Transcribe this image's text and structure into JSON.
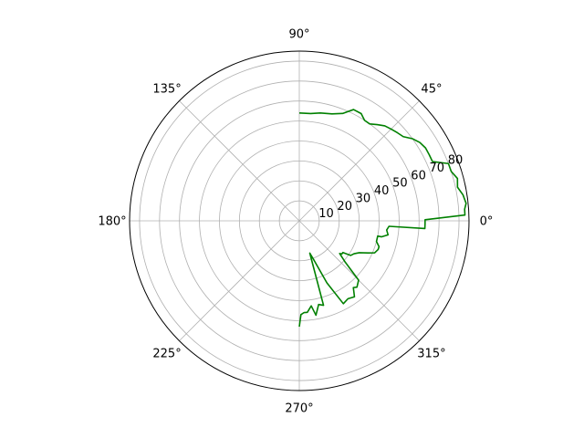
{
  "chart_data": {
    "type": "line",
    "projection": "polar",
    "title": "",
    "theta_unit": "degrees",
    "theta_tick_labels": [
      "0°",
      "45°",
      "90°",
      "135°",
      "180°",
      "225°",
      "270°",
      "315°"
    ],
    "theta_ticks": [
      0,
      45,
      90,
      135,
      180,
      225,
      270,
      315
    ],
    "r_ticks": [
      10,
      20,
      30,
      40,
      50,
      60,
      70,
      80
    ],
    "r_tick_labels": [
      "10",
      "20",
      "30",
      "40",
      "50",
      "60",
      "70",
      "80"
    ],
    "rlim": [
      0,
      85
    ],
    "grid": true,
    "series": [
      {
        "color": "#008000",
        "theta": [
          90,
          84,
          79,
          73,
          68,
          64,
          60,
          57,
          54,
          51,
          48,
          45,
          42,
          39,
          36,
          33,
          30,
          27,
          24,
          21,
          18,
          15,
          12,
          9,
          6,
          4,
          2,
          0.5,
          -1.5,
          -3.5,
          -3.5,
          -6,
          -9,
          -11,
          -11,
          -15,
          -18,
          -20,
          -23,
          -25,
          -28,
          -31,
          -34,
          -36,
          -38,
          -39,
          -42,
          -45,
          -49,
          -51,
          -54,
          -58,
          -62,
          -66,
          -70,
          -72,
          -74,
          -77,
          -80,
          -82,
          -85,
          -87,
          -89,
          -90
        ],
        "r": [
          54,
          54,
          55,
          56,
          58,
          62,
          62,
          60,
          60,
          62,
          64,
          65,
          66,
          67,
          70,
          72,
          73,
          73,
          73,
          80,
          80,
          82,
          81,
          83,
          84,
          83,
          83,
          63,
          63,
          63,
          45,
          44,
          45,
          42,
          40,
          40,
          42,
          42,
          41,
          38,
          34,
          32,
          31,
          27,
          27,
          26,
          31,
          42,
          44,
          43,
          47,
          46,
          47,
          34,
          20,
          17,
          44,
          43,
          48,
          43,
          46,
          46,
          47,
          53
        ]
      }
    ]
  }
}
